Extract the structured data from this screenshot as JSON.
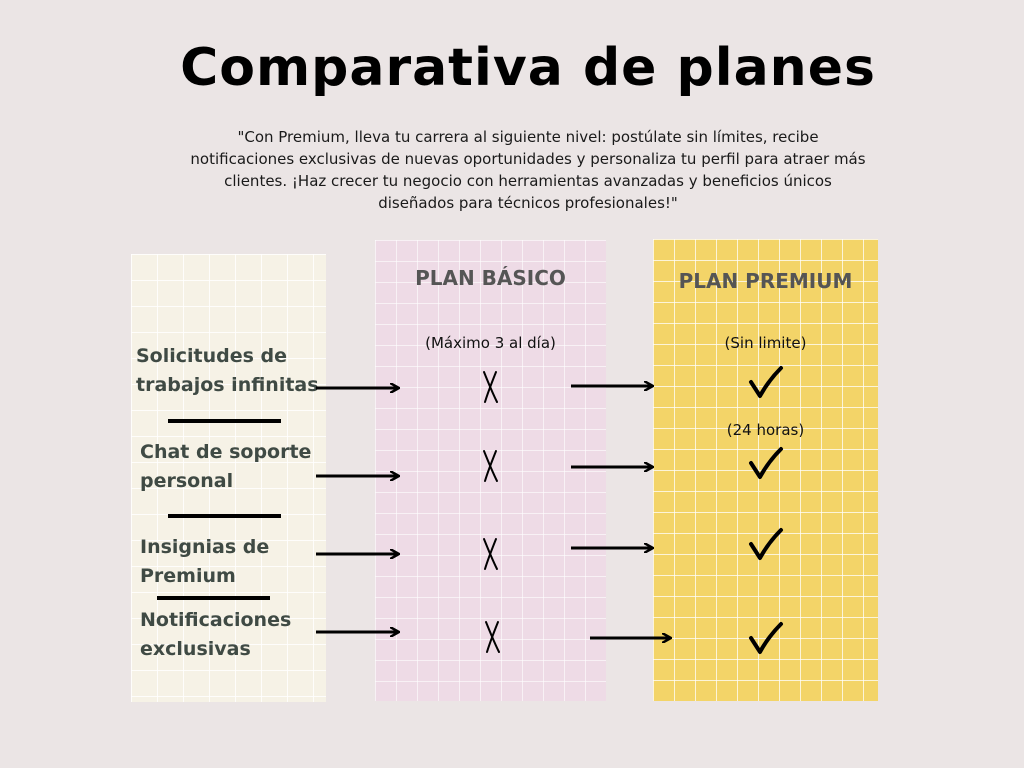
{
  "title": "Comparativa de planes",
  "subtitle": "\"Con Premium, lleva tu carrera al siguiente nivel: postúlate sin límites, recibe notificaciones exclusivas de nuevas oportunidades y personaliza tu perfil para atraer más clientes. ¡Haz crecer tu negocio con herramientas avanzadas y beneficios únicos diseñados para técnicos profesionales!\"",
  "plans": {
    "basic": {
      "title": "PLAN BÁSICO",
      "note": "(Máximo 3 al día)"
    },
    "premium": {
      "title": "PLAN PREMIUM",
      "note_1": "(Sin limite)",
      "note_2": "(24 horas)"
    }
  },
  "features": [
    {
      "label_line1": "Solicitudes de",
      "label_line2": "trabajos infinitas",
      "basic": "✗",
      "premium": "✓"
    },
    {
      "label_line1": "Chat  de  soporte",
      "label_line2": "personal",
      "basic": "✗",
      "premium": "✓"
    },
    {
      "label_line1": "Insignias de",
      "label_line2": "Premium",
      "basic": "✗",
      "premium": "✓"
    },
    {
      "label_line1": "Notificaciones",
      "label_line2": "exclusivas",
      "basic": "✗",
      "premium": "✓"
    }
  ],
  "colors": {
    "background": "#ebe5e5",
    "features_column": "#f6f2e6",
    "basic_column": "#eedbe6",
    "premium_column": "#f3d468"
  }
}
